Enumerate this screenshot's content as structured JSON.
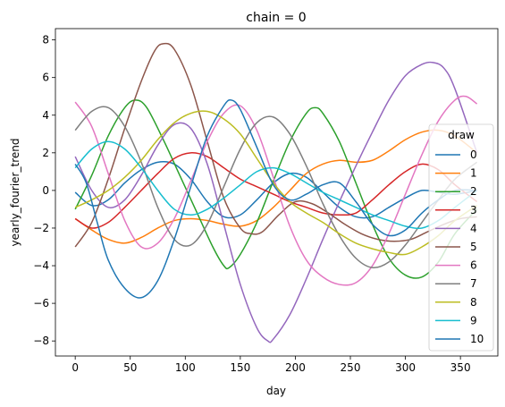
{
  "chart_data": {
    "type": "line",
    "title": "chain = 0",
    "xlabel": "day",
    "ylabel": "yearly_fourier_trend",
    "xlim": [
      -18,
      384
    ],
    "ylim": [
      -8.8,
      8.6
    ],
    "xticks": [
      0,
      50,
      100,
      150,
      200,
      250,
      300,
      350
    ],
    "yticks": [
      -8,
      -6,
      -4,
      -2,
      0,
      2,
      4,
      6,
      8
    ],
    "grid": false,
    "legend": {
      "title": "draw",
      "placement": "right"
    },
    "series": [
      {
        "name": "0",
        "color": "#1f77b4",
        "points": [
          [
            0,
            -0.1
          ],
          [
            15,
            -0.8
          ],
          [
            30,
            -0.5
          ],
          [
            45,
            0.4
          ],
          [
            60,
            1.1
          ],
          [
            75,
            1.5
          ],
          [
            90,
            1.4
          ],
          [
            105,
            0.6
          ],
          [
            120,
            -0.6
          ],
          [
            135,
            -1.4
          ],
          [
            150,
            -1.3
          ],
          [
            165,
            -0.5
          ],
          [
            180,
            0.4
          ],
          [
            195,
            0.9
          ],
          [
            210,
            0.7
          ],
          [
            225,
            -0.1
          ],
          [
            240,
            -0.9
          ],
          [
            255,
            -1.4
          ],
          [
            270,
            -1.4
          ],
          [
            285,
            -0.9
          ],
          [
            300,
            -0.4
          ],
          [
            315,
            0.0
          ],
          [
            330,
            -0.1
          ],
          [
            345,
            -0.2
          ],
          [
            365,
            0.0
          ]
        ]
      },
      {
        "name": "1",
        "color": "#ff7f0e",
        "points": [
          [
            0,
            -1.5
          ],
          [
            15,
            -2.1
          ],
          [
            30,
            -2.6
          ],
          [
            45,
            -2.8
          ],
          [
            60,
            -2.5
          ],
          [
            75,
            -2.0
          ],
          [
            90,
            -1.6
          ],
          [
            105,
            -1.5
          ],
          [
            120,
            -1.6
          ],
          [
            135,
            -1.8
          ],
          [
            150,
            -1.9
          ],
          [
            165,
            -1.6
          ],
          [
            180,
            -0.9
          ],
          [
            195,
            0.0
          ],
          [
            210,
            0.9
          ],
          [
            225,
            1.4
          ],
          [
            240,
            1.6
          ],
          [
            255,
            1.5
          ],
          [
            270,
            1.6
          ],
          [
            285,
            2.1
          ],
          [
            300,
            2.7
          ],
          [
            315,
            3.1
          ],
          [
            330,
            3.2
          ],
          [
            345,
            2.9
          ],
          [
            365,
            2.0
          ]
        ]
      },
      {
        "name": "2",
        "color": "#2ca02c",
        "points": [
          [
            0,
            -1.0
          ],
          [
            15,
            0.8
          ],
          [
            30,
            2.9
          ],
          [
            45,
            4.4
          ],
          [
            55,
            4.8
          ],
          [
            65,
            4.4
          ],
          [
            80,
            2.7
          ],
          [
            95,
            0.8
          ],
          [
            110,
            -1.1
          ],
          [
            125,
            -3.0
          ],
          [
            135,
            -4.0
          ],
          [
            140,
            -4.1
          ],
          [
            150,
            -3.4
          ],
          [
            165,
            -1.7
          ],
          [
            180,
            0.5
          ],
          [
            195,
            2.6
          ],
          [
            210,
            4.1
          ],
          [
            218,
            4.4
          ],
          [
            225,
            4.1
          ],
          [
            240,
            2.6
          ],
          [
            255,
            0.4
          ],
          [
            270,
            -1.8
          ],
          [
            285,
            -3.6
          ],
          [
            300,
            -4.5
          ],
          [
            315,
            -4.6
          ],
          [
            330,
            -3.8
          ],
          [
            345,
            -2.3
          ],
          [
            365,
            -1.0
          ]
        ]
      },
      {
        "name": "3",
        "color": "#d62728",
        "points": [
          [
            0,
            -1.5
          ],
          [
            15,
            -2.0
          ],
          [
            30,
            -1.7
          ],
          [
            45,
            -0.9
          ],
          [
            60,
            0.0
          ],
          [
            75,
            0.9
          ],
          [
            90,
            1.7
          ],
          [
            105,
            2.0
          ],
          [
            120,
            1.8
          ],
          [
            135,
            1.2
          ],
          [
            150,
            0.6
          ],
          [
            165,
            0.2
          ],
          [
            180,
            -0.2
          ],
          [
            195,
            -0.6
          ],
          [
            210,
            -0.9
          ],
          [
            225,
            -1.2
          ],
          [
            240,
            -1.3
          ],
          [
            255,
            -1.2
          ],
          [
            270,
            -0.5
          ],
          [
            285,
            0.3
          ],
          [
            300,
            1.0
          ],
          [
            315,
            1.4
          ],
          [
            330,
            1.1
          ],
          [
            345,
            0.3
          ],
          [
            365,
            -0.6
          ]
        ]
      },
      {
        "name": "4",
        "color": "#9467bd",
        "points": [
          [
            0,
            1.8
          ],
          [
            15,
            0.0
          ],
          [
            30,
            -0.9
          ],
          [
            45,
            -0.5
          ],
          [
            60,
            0.8
          ],
          [
            75,
            2.4
          ],
          [
            90,
            3.5
          ],
          [
            105,
            3.3
          ],
          [
            120,
            1.4
          ],
          [
            135,
            -1.8
          ],
          [
            150,
            -5.0
          ],
          [
            165,
            -7.3
          ],
          [
            175,
            -8.0
          ],
          [
            180,
            -7.9
          ],
          [
            195,
            -6.6
          ],
          [
            210,
            -4.7
          ],
          [
            225,
            -2.6
          ],
          [
            240,
            -0.6
          ],
          [
            255,
            1.3
          ],
          [
            270,
            3.1
          ],
          [
            285,
            4.8
          ],
          [
            300,
            6.1
          ],
          [
            315,
            6.7
          ],
          [
            325,
            6.8
          ],
          [
            335,
            6.5
          ],
          [
            345,
            5.4
          ],
          [
            365,
            2.0
          ]
        ]
      },
      {
        "name": "5",
        "color": "#8c564b",
        "points": [
          [
            0,
            -3.0
          ],
          [
            15,
            -1.7
          ],
          [
            30,
            0.6
          ],
          [
            45,
            3.3
          ],
          [
            60,
            5.8
          ],
          [
            72,
            7.4
          ],
          [
            80,
            7.8
          ],
          [
            90,
            7.5
          ],
          [
            105,
            5.6
          ],
          [
            120,
            2.6
          ],
          [
            135,
            -0.4
          ],
          [
            150,
            -2.0
          ],
          [
            160,
            -2.3
          ],
          [
            170,
            -2.2
          ],
          [
            185,
            -1.3
          ],
          [
            200,
            -0.6
          ],
          [
            215,
            -0.7
          ],
          [
            230,
            -1.2
          ],
          [
            245,
            -1.8
          ],
          [
            260,
            -2.3
          ],
          [
            275,
            -2.6
          ],
          [
            290,
            -2.7
          ],
          [
            305,
            -2.6
          ],
          [
            320,
            -2.2
          ],
          [
            335,
            -1.8
          ],
          [
            350,
            -1.5
          ],
          [
            365,
            -1.4
          ]
        ]
      },
      {
        "name": "6",
        "color": "#e377c2",
        "points": [
          [
            0,
            4.7
          ],
          [
            15,
            3.4
          ],
          [
            30,
            0.9
          ],
          [
            45,
            -1.6
          ],
          [
            60,
            -3.0
          ],
          [
            75,
            -2.8
          ],
          [
            90,
            -1.5
          ],
          [
            105,
            0.5
          ],
          [
            120,
            2.6
          ],
          [
            135,
            4.1
          ],
          [
            150,
            4.5
          ],
          [
            165,
            3.2
          ],
          [
            180,
            0.7
          ],
          [
            195,
            -1.9
          ],
          [
            210,
            -3.7
          ],
          [
            225,
            -4.6
          ],
          [
            240,
            -5.0
          ],
          [
            255,
            -4.9
          ],
          [
            270,
            -4.0
          ],
          [
            285,
            -2.3
          ],
          [
            300,
            -0.2
          ],
          [
            315,
            1.9
          ],
          [
            330,
            3.7
          ],
          [
            345,
            4.8
          ],
          [
            355,
            5.0
          ],
          [
            365,
            4.6
          ]
        ]
      },
      {
        "name": "7",
        "color": "#7f7f7f",
        "points": [
          [
            0,
            3.2
          ],
          [
            15,
            4.2
          ],
          [
            30,
            4.4
          ],
          [
            45,
            3.4
          ],
          [
            60,
            1.5
          ],
          [
            75,
            -0.9
          ],
          [
            90,
            -2.6
          ],
          [
            105,
            -2.9
          ],
          [
            120,
            -1.8
          ],
          [
            135,
            0.2
          ],
          [
            150,
            2.2
          ],
          [
            165,
            3.6
          ],
          [
            180,
            3.9
          ],
          [
            195,
            3.0
          ],
          [
            210,
            1.3
          ],
          [
            225,
            -0.7
          ],
          [
            240,
            -2.4
          ],
          [
            255,
            -3.6
          ],
          [
            270,
            -4.1
          ],
          [
            285,
            -3.8
          ],
          [
            300,
            -2.9
          ],
          [
            315,
            -1.7
          ],
          [
            330,
            -0.5
          ],
          [
            345,
            0.6
          ],
          [
            365,
            1.5
          ]
        ]
      },
      {
        "name": "8",
        "color": "#bcbd22",
        "points": [
          [
            0,
            -0.9
          ],
          [
            15,
            -0.5
          ],
          [
            30,
            0.0
          ],
          [
            45,
            0.7
          ],
          [
            60,
            1.6
          ],
          [
            75,
            2.7
          ],
          [
            90,
            3.6
          ],
          [
            105,
            4.1
          ],
          [
            120,
            4.2
          ],
          [
            135,
            3.8
          ],
          [
            150,
            3.0
          ],
          [
            165,
            1.7
          ],
          [
            180,
            0.4
          ],
          [
            195,
            -0.6
          ],
          [
            210,
            -1.2
          ],
          [
            225,
            -1.7
          ],
          [
            240,
            -2.3
          ],
          [
            255,
            -2.8
          ],
          [
            270,
            -3.1
          ],
          [
            285,
            -3.3
          ],
          [
            300,
            -3.4
          ],
          [
            315,
            -3.0
          ],
          [
            330,
            -2.4
          ],
          [
            345,
            -1.6
          ],
          [
            365,
            -0.8
          ]
        ]
      },
      {
        "name": "9",
        "color": "#17becf",
        "points": [
          [
            0,
            1.2
          ],
          [
            15,
            2.2
          ],
          [
            30,
            2.6
          ],
          [
            45,
            2.2
          ],
          [
            60,
            1.2
          ],
          [
            75,
            0.0
          ],
          [
            90,
            -1.0
          ],
          [
            105,
            -1.3
          ],
          [
            120,
            -1.0
          ],
          [
            135,
            -0.4
          ],
          [
            150,
            0.3
          ],
          [
            165,
            1.0
          ],
          [
            180,
            1.2
          ],
          [
            195,
            0.9
          ],
          [
            210,
            0.4
          ],
          [
            225,
            -0.1
          ],
          [
            240,
            -0.5
          ],
          [
            255,
            -0.9
          ],
          [
            270,
            -1.3
          ],
          [
            285,
            -1.6
          ],
          [
            300,
            -1.9
          ],
          [
            315,
            -2.0
          ],
          [
            330,
            -1.6
          ],
          [
            345,
            -0.9
          ],
          [
            365,
            0.0
          ]
        ]
      },
      {
        "name": "10",
        "color": "#1f77b4",
        "points": [
          [
            0,
            1.4
          ],
          [
            10,
            0.4
          ],
          [
            20,
            -1.7
          ],
          [
            30,
            -3.7
          ],
          [
            45,
            -5.2
          ],
          [
            60,
            -5.7
          ],
          [
            75,
            -4.8
          ],
          [
            90,
            -2.6
          ],
          [
            105,
            0.2
          ],
          [
            120,
            2.9
          ],
          [
            135,
            4.5
          ],
          [
            142,
            4.8
          ],
          [
            150,
            4.3
          ],
          [
            165,
            2.3
          ],
          [
            180,
            0.3
          ],
          [
            195,
            -0.5
          ],
          [
            210,
            -0.2
          ],
          [
            225,
            0.3
          ],
          [
            240,
            0.4
          ],
          [
            255,
            -0.6
          ],
          [
            270,
            -1.8
          ],
          [
            285,
            -2.4
          ],
          [
            300,
            -2.1
          ],
          [
            315,
            -1.2
          ],
          [
            330,
            -0.5
          ],
          [
            345,
            0.0
          ],
          [
            365,
            0.0
          ]
        ]
      }
    ]
  }
}
